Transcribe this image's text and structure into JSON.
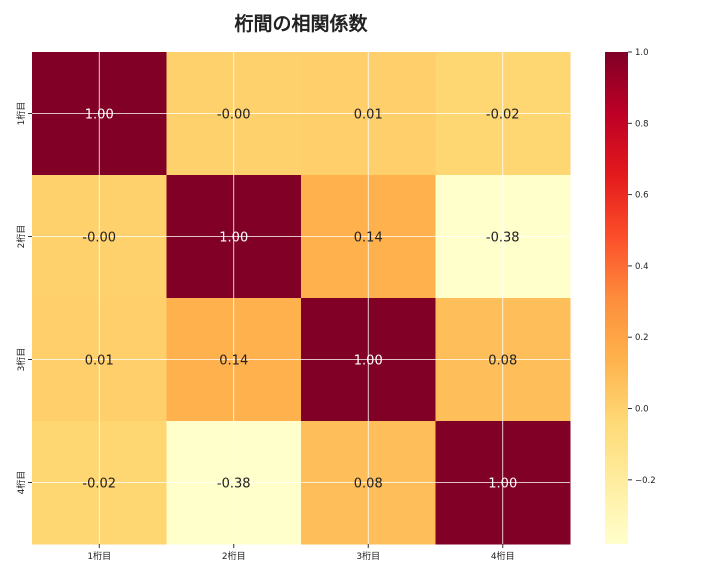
{
  "chart_data": {
    "type": "heatmap",
    "title": "桁間の相関係数",
    "xlabel": "",
    "ylabel": "",
    "x_categories": [
      "1桁目",
      "2桁目",
      "3桁目",
      "4桁目"
    ],
    "y_categories": [
      "1桁目",
      "2桁目",
      "3桁目",
      "4桁目"
    ],
    "values": [
      [
        1.0,
        -0.0,
        0.01,
        -0.02
      ],
      [
        -0.0,
        1.0,
        0.14,
        -0.38
      ],
      [
        0.01,
        0.14,
        1.0,
        0.08
      ],
      [
        -0.02,
        -0.38,
        0.08,
        1.0
      ]
    ],
    "value_labels": [
      [
        "1.00",
        "-0.00",
        "0.01",
        "-0.02"
      ],
      [
        "-0.00",
        "1.00",
        "0.14",
        "-0.38"
      ],
      [
        "0.01",
        "0.14",
        "1.00",
        "0.08"
      ],
      [
        "-0.02",
        "-0.38",
        "0.08",
        "1.00"
      ]
    ],
    "colormap": "YlOrRd",
    "colormap_stops": [
      "#ffffcc",
      "#ffeda0",
      "#fed976",
      "#feb24c",
      "#fd8d3c",
      "#fc4e2a",
      "#e31a1c",
      "#bd0026",
      "#800026"
    ],
    "color_range": [
      -0.38,
      1.0
    ],
    "colorbar_ticks": [
      "1.0",
      "0.8",
      "0.6",
      "0.4",
      "0.2",
      "0.0",
      "−0.2"
    ],
    "colorbar_tick_values": [
      1.0,
      0.8,
      0.6,
      0.4,
      0.2,
      0.0,
      -0.2
    ],
    "grid": true
  }
}
